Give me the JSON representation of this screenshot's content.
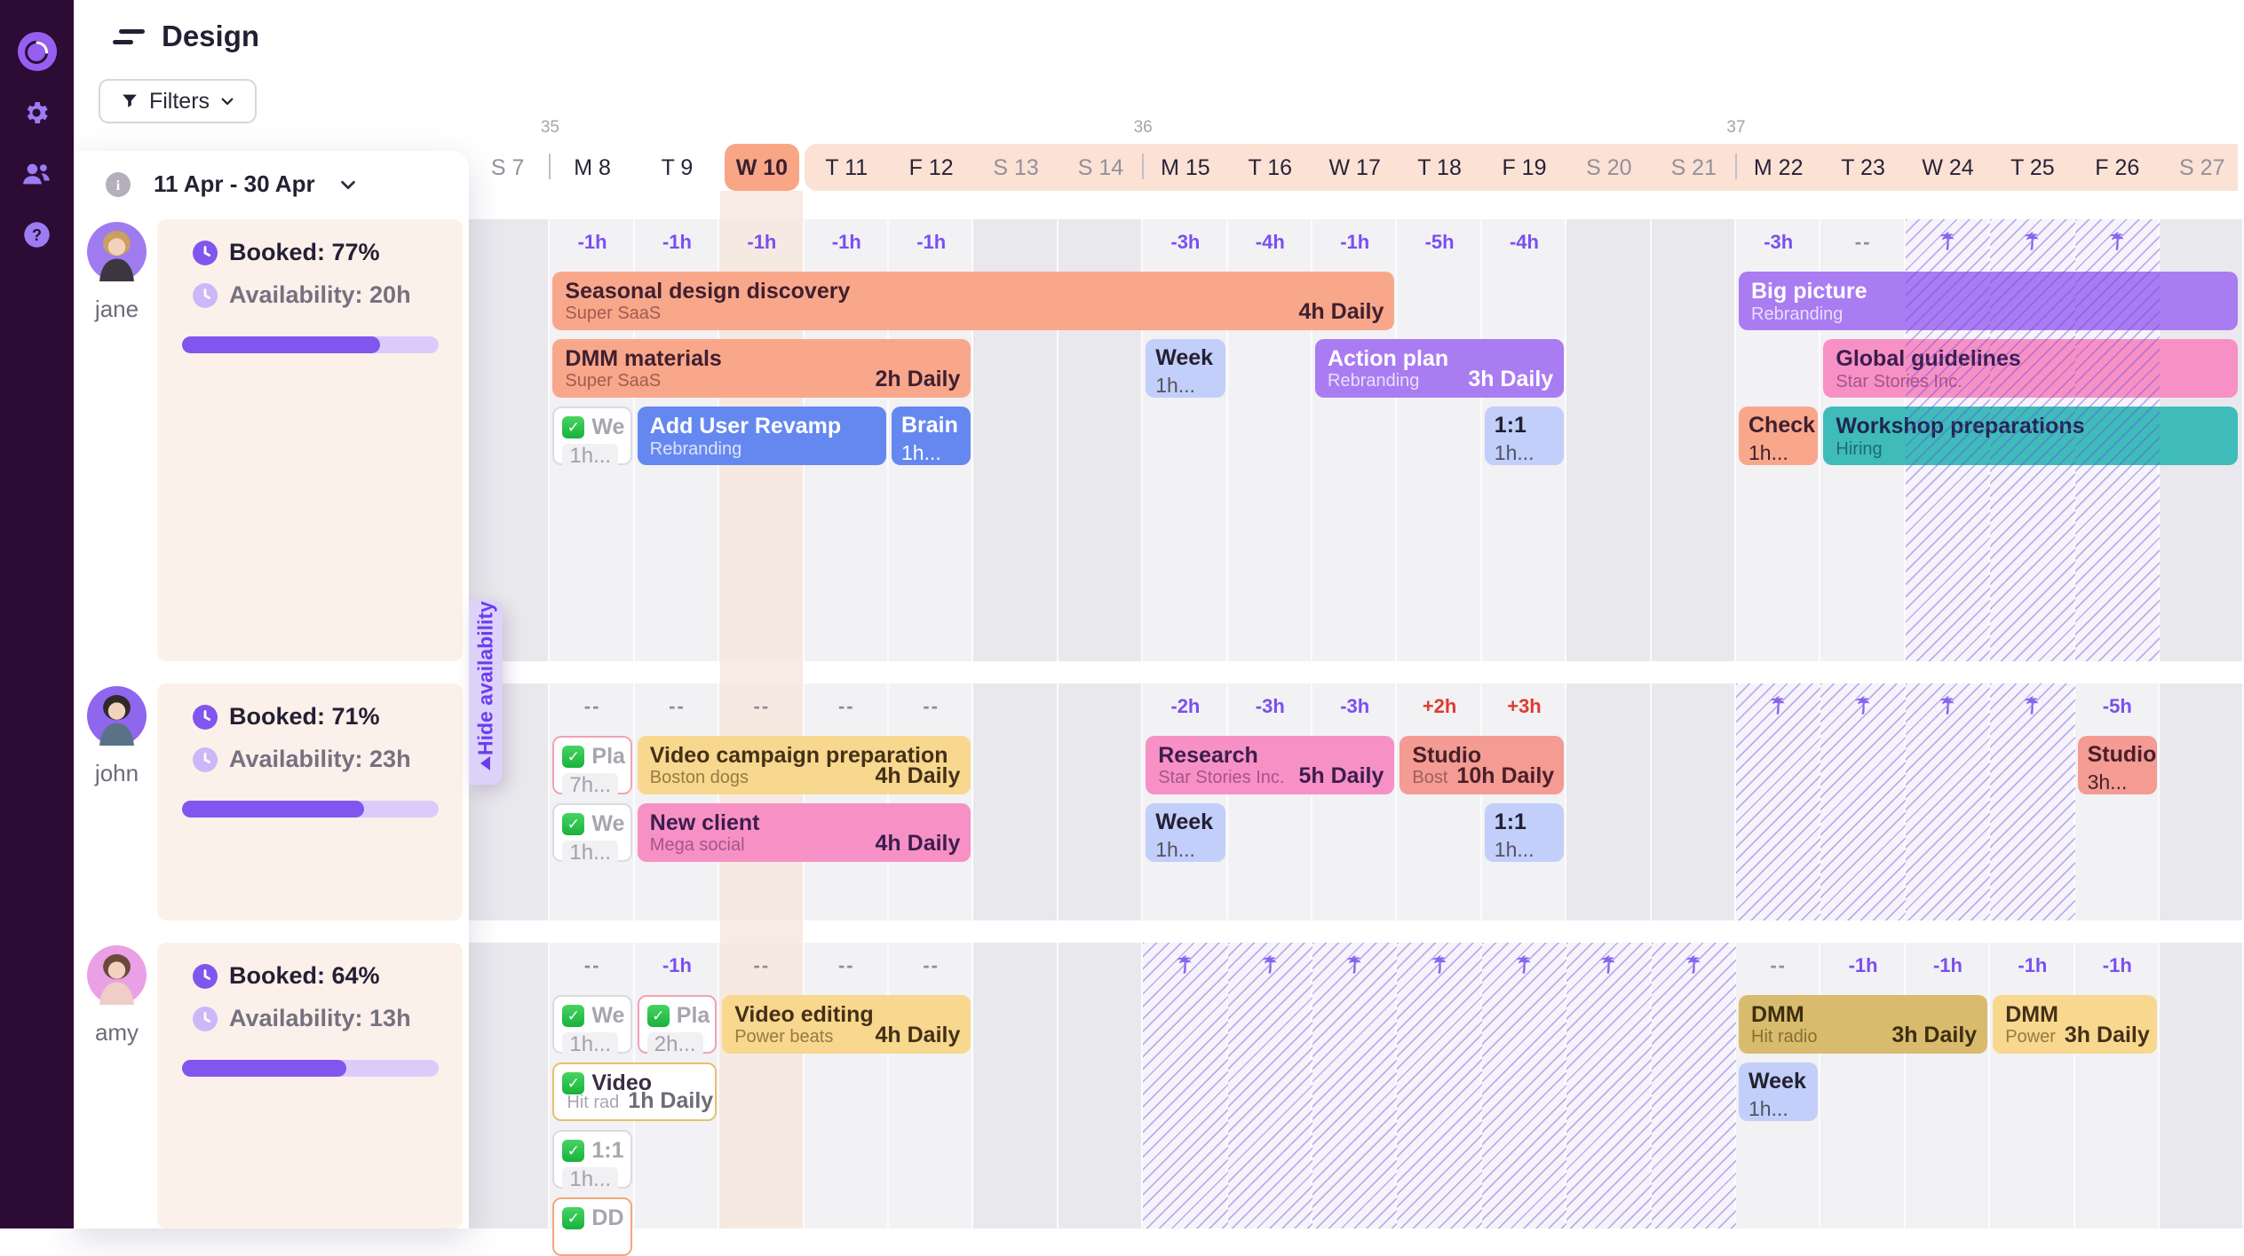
{
  "topbar": {
    "title": "Design"
  },
  "filters": {
    "label": "Filters"
  },
  "icons": {
    "check_glyph": "✓",
    "info_glyph": "i",
    "help_glyph": "?"
  },
  "panel": {
    "date_range": "11 Apr - 30 Apr",
    "hide_tab": "Hide availability",
    "members": [
      {
        "name": "jane",
        "booked": "Booked: 77%",
        "availability": "Availability: 20h",
        "pct": 77,
        "avatar_bg": "#a07bf0",
        "hair": "#c9a05c",
        "shirt": "#3b3640"
      },
      {
        "name": "john",
        "booked": "Booked: 71%",
        "availability": "Availability: 23h",
        "pct": 71,
        "avatar_bg": "#8f66ee",
        "hair": "#2f2b28",
        "shirt": "#5b7286"
      },
      {
        "name": "amy",
        "booked": "Booked: 64%",
        "availability": "Availability: 13h",
        "pct": 64,
        "avatar_bg": "#eaa0e4",
        "hair": "#6b4a3b",
        "shirt": "#f0cdc6"
      }
    ]
  },
  "timeline": {
    "range_start_index": 4,
    "days": [
      {
        "label": "S 7",
        "weekend": true
      },
      {
        "label": "M 8",
        "week": "35"
      },
      {
        "label": "T 9"
      },
      {
        "label": "W 10",
        "today": true
      },
      {
        "label": "T 11"
      },
      {
        "label": "F 12"
      },
      {
        "label": "S 13",
        "weekend": true
      },
      {
        "label": "S 14",
        "weekend": true
      },
      {
        "label": "M 15",
        "week": "36"
      },
      {
        "label": "T 16"
      },
      {
        "label": "W 17"
      },
      {
        "label": "T 18"
      },
      {
        "label": "F 19"
      },
      {
        "label": "S 20",
        "weekend": true
      },
      {
        "label": "S 21",
        "weekend": true
      },
      {
        "label": "M 22",
        "week": "37"
      },
      {
        "label": "T 23"
      },
      {
        "label": "W 24"
      },
      {
        "label": "T 25"
      },
      {
        "label": "F 26"
      },
      {
        "label": "S 27",
        "weekend": true
      }
    ],
    "sections": [
      {
        "member": "jane",
        "hours": [
          "",
          "-1h",
          "-1h",
          "-1h",
          "-1h",
          "-1h",
          "",
          "",
          "-3h",
          "-4h",
          "-1h",
          "-5h",
          "-4h",
          "",
          "",
          "-3h",
          "--",
          "",
          "",
          "",
          ""
        ],
        "vacation": {
          "start": 17,
          "end": 19
        },
        "tasks": [
          {
            "row": 0,
            "start": 1,
            "end": 10,
            "color": "orange",
            "title": "Seasonal design discovery",
            "sub": "Super SaaS",
            "right": "4h Daily"
          },
          {
            "row": 0,
            "start": 15,
            "end": 20,
            "color": "purple",
            "title": "Big picture",
            "sub": "Rebranding",
            "clip": true
          },
          {
            "row": 1,
            "start": 1,
            "end": 5,
            "color": "orange",
            "title": "DMM materials",
            "sub": "Super SaaS",
            "right": "2h Daily"
          },
          {
            "row": 1,
            "start": 8,
            "end": 8,
            "color": "periwinkle",
            "kind": "mini",
            "title": "Week",
            "line2": "1h..."
          },
          {
            "row": 1,
            "start": 10,
            "end": 12,
            "color": "purple",
            "title": "Action plan",
            "sub": "Rebranding",
            "right": "3h Daily"
          },
          {
            "row": 1,
            "start": 16,
            "end": 20,
            "color": "pink",
            "title": "Global guidelines",
            "sub": "Star Stories Inc.",
            "clip": true
          },
          {
            "row": 2,
            "start": 1,
            "end": 1,
            "kind": "check",
            "border": "gray",
            "title": "We",
            "line2": "1h..."
          },
          {
            "row": 2,
            "start": 2,
            "end": 4,
            "color": "blue",
            "title": "Add User Revamp",
            "sub": "Rebranding"
          },
          {
            "row": 2,
            "start": 5,
            "end": 5,
            "color": "blue",
            "kind": "mini",
            "title": "Brain",
            "line2": "1h..."
          },
          {
            "row": 2,
            "start": 12,
            "end": 12,
            "color": "periwinkle",
            "kind": "mini",
            "title": "1:1",
            "line2": "1h..."
          },
          {
            "row": 2,
            "start": 15,
            "end": 15,
            "color": "orange",
            "kind": "mini",
            "title": "Check",
            "line2": "1h..."
          },
          {
            "row": 2,
            "start": 16,
            "end": 20,
            "color": "teal",
            "title": "Workshop preparations",
            "sub": "Hiring",
            "clip": true
          }
        ]
      },
      {
        "member": "john",
        "hours": [
          "",
          "--",
          "--",
          "--",
          "--",
          "--",
          "",
          "",
          "-2h",
          "-3h",
          "-3h",
          "+2h",
          "+3h",
          "",
          "",
          "",
          "",
          "",
          "",
          "-5h",
          ""
        ],
        "vacation": {
          "start": 15,
          "end": 18
        },
        "tasks": [
          {
            "row": 0,
            "start": 1,
            "end": 1,
            "kind": "check",
            "border": "pink",
            "title": "Pla",
            "line2": "7h..."
          },
          {
            "row": 0,
            "start": 2,
            "end": 5,
            "color": "yellow",
            "title": "Video campaign preparation",
            "sub": "Boston dogs",
            "right": "4h Daily"
          },
          {
            "row": 0,
            "start": 8,
            "end": 10,
            "color": "pink",
            "title": "Research",
            "sub": "Star Stories Inc.",
            "right": "5h Daily"
          },
          {
            "row": 0,
            "start": 11,
            "end": 12,
            "color": "salmon",
            "title": "Studio",
            "sub": "Bost",
            "right": "10h Daily"
          },
          {
            "row": 0,
            "start": 19,
            "end": 19,
            "color": "salmon",
            "kind": "mini",
            "title": "Studio",
            "line2": "3h..."
          },
          {
            "row": 1,
            "start": 1,
            "end": 1,
            "kind": "check",
            "border": "gray",
            "title": "We",
            "line2": "1h..."
          },
          {
            "row": 1,
            "start": 2,
            "end": 5,
            "color": "pink",
            "title": "New client",
            "sub": "Mega social",
            "right": "4h Daily"
          },
          {
            "row": 1,
            "start": 8,
            "end": 8,
            "color": "periwinkle",
            "kind": "mini",
            "title": "Week",
            "line2": "1h..."
          },
          {
            "row": 1,
            "start": 12,
            "end": 12,
            "color": "periwinkle",
            "kind": "mini",
            "title": "1:1",
            "line2": "1h..."
          }
        ]
      },
      {
        "member": "amy",
        "hours": [
          "",
          "--",
          "-1h",
          "--",
          "--",
          "--",
          "",
          "",
          "",
          "",
          "",
          "",
          "",
          "",
          "",
          "--",
          "-1h",
          "-1h",
          "-1h",
          "-1h",
          ""
        ],
        "vacation": {
          "start": 8,
          "end": 14
        },
        "tasks": [
          {
            "row": 0,
            "start": 1,
            "end": 1,
            "kind": "check",
            "border": "gray",
            "title": "We",
            "line2": "1h..."
          },
          {
            "row": 0,
            "start": 2,
            "end": 2,
            "kind": "check",
            "border": "pink",
            "title": "Pla",
            "line2": "2h..."
          },
          {
            "row": 0,
            "start": 3,
            "end": 5,
            "color": "yellow",
            "title": "Video editing",
            "sub": "Power beats",
            "right": "4h Daily"
          },
          {
            "row": 0,
            "start": 15,
            "end": 17,
            "color": "mustard",
            "title": "DMM",
            "sub": "Hit radio",
            "right": "3h Daily"
          },
          {
            "row": 0,
            "start": 18,
            "end": 19,
            "color": "yellow",
            "title": "DMM",
            "sub": "Power",
            "right": "3h Daily"
          },
          {
            "row": 1,
            "start": 1,
            "end": 2,
            "kind": "check",
            "border": "yellow",
            "title": "Video",
            "sub": "Hit rad",
            "right": "1h Daily",
            "dark": true
          },
          {
            "row": 1,
            "start": 15,
            "end": 15,
            "color": "periwinkle",
            "kind": "mini",
            "title": "Week",
            "line2": "1h..."
          },
          {
            "row": 2,
            "start": 1,
            "end": 1,
            "kind": "check",
            "border": "gray",
            "title": "1:1",
            "line2": "1h..."
          },
          {
            "row": 3,
            "start": 1,
            "end": 1,
            "kind": "check",
            "border": "orange",
            "title": "DD",
            "line2": ""
          }
        ]
      }
    ]
  },
  "colors": {
    "sidebar": "#2c0c35",
    "icon": "#9b7cf2",
    "today_pill": "#f8a685",
    "range_band": "#fbe2d5",
    "today_col": "#f6e9e1",
    "weekend_col": "#e9e8ec",
    "day_col": "#f2f1f4",
    "vacation_bg": "#f6f4fa",
    "palm": "#8a63f0",
    "progress_fill": "#8156ee",
    "progress_track": "#dccbfa",
    "bar_orange": "#f9a78b",
    "bar_blue": "#6588f0",
    "bar_periwinkle": "#c2cffa",
    "bar_purple": "#a97cf2",
    "bar_pink": "#f791c5",
    "bar_teal": "#3fbcba",
    "bar_yellow": "#f8d88e",
    "bar_mustard": "#d9bb6e",
    "bar_salmon": "#f49b94",
    "border_gray": "#dcdae3",
    "border_pink": "#f0a3b6",
    "border_yellow": "#e6c16c",
    "border_orange": "#f3a67e",
    "booked_icon": "#8156ee",
    "availability_icon": "#ccb7f8"
  }
}
